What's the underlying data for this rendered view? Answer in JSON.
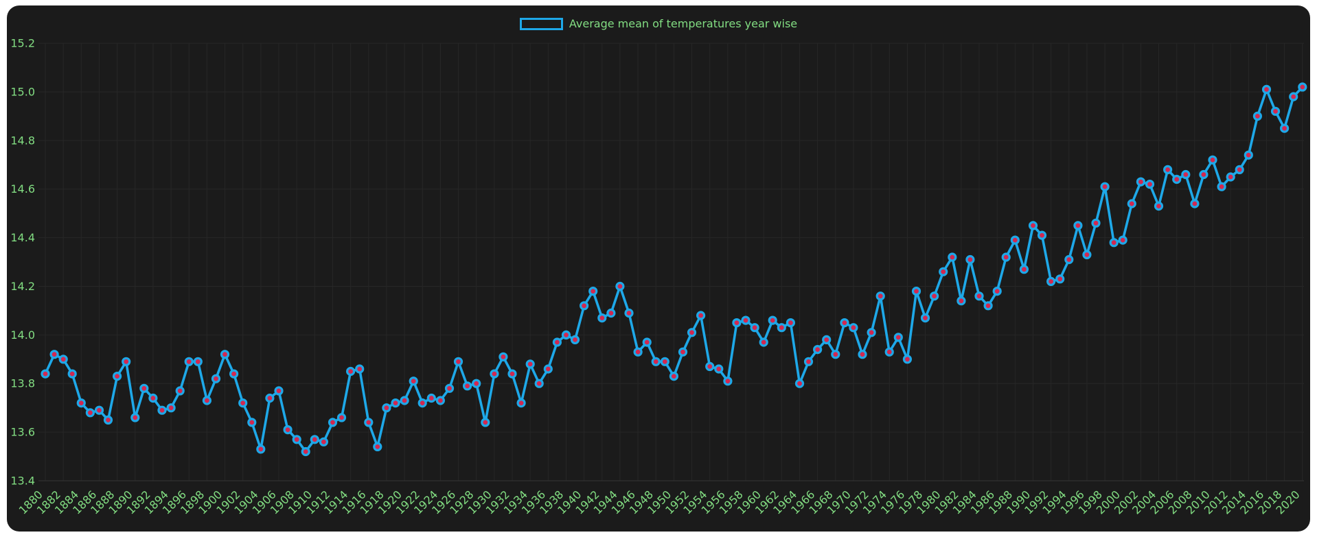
{
  "chart_data": {
    "type": "line",
    "title": "",
    "legend": "Average mean of temperatures year wise",
    "legend_position": "top-center",
    "xlabel": "",
    "ylabel": "",
    "grid": true,
    "ylim": [
      13.4,
      15.2
    ],
    "y_ticks": [
      "13.4",
      "13.6",
      "13.8",
      "14.0",
      "14.2",
      "14.4",
      "14.6",
      "14.8",
      "15.0",
      "15.2"
    ],
    "x_ticks": [
      1880,
      1882,
      1884,
      1886,
      1888,
      1890,
      1892,
      1894,
      1896,
      1898,
      1900,
      1902,
      1904,
      1906,
      1908,
      1910,
      1912,
      1914,
      1916,
      1918,
      1920,
      1922,
      1924,
      1926,
      1928,
      1930,
      1932,
      1934,
      1936,
      1938,
      1940,
      1942,
      1944,
      1946,
      1948,
      1950,
      1952,
      1954,
      1956,
      1958,
      1960,
      1962,
      1964,
      1966,
      1968,
      1970,
      1972,
      1974,
      1976,
      1978,
      1980,
      1982,
      1984,
      1986,
      1988,
      1990,
      1992,
      1994,
      1996,
      1998,
      2000,
      2002,
      2004,
      2006,
      2008,
      2010,
      2012,
      2014,
      2016,
      2018,
      2020
    ],
    "x": [
      1880,
      1881,
      1882,
      1883,
      1884,
      1885,
      1886,
      1887,
      1888,
      1889,
      1890,
      1891,
      1892,
      1893,
      1894,
      1895,
      1896,
      1897,
      1898,
      1899,
      1900,
      1901,
      1902,
      1903,
      1904,
      1905,
      1906,
      1907,
      1908,
      1909,
      1910,
      1911,
      1912,
      1913,
      1914,
      1915,
      1916,
      1917,
      1918,
      1919,
      1920,
      1921,
      1922,
      1923,
      1924,
      1925,
      1926,
      1927,
      1928,
      1929,
      1930,
      1931,
      1932,
      1933,
      1934,
      1935,
      1936,
      1937,
      1938,
      1939,
      1940,
      1941,
      1942,
      1943,
      1944,
      1945,
      1946,
      1947,
      1948,
      1949,
      1950,
      1951,
      1952,
      1953,
      1954,
      1955,
      1956,
      1957,
      1958,
      1959,
      1960,
      1961,
      1962,
      1963,
      1964,
      1965,
      1966,
      1967,
      1968,
      1969,
      1970,
      1971,
      1972,
      1973,
      1974,
      1975,
      1976,
      1977,
      1978,
      1979,
      1980,
      1981,
      1982,
      1983,
      1984,
      1985,
      1986,
      1987,
      1988,
      1989,
      1990,
      1991,
      1992,
      1993,
      1994,
      1995,
      1996,
      1997,
      1998,
      1999,
      2000,
      2001,
      2002,
      2003,
      2004,
      2005,
      2006,
      2007,
      2008,
      2009,
      2010,
      2011,
      2012,
      2013,
      2014,
      2015,
      2016,
      2017,
      2018,
      2019,
      2020
    ],
    "series": [
      {
        "name": "Average mean of temperatures year wise",
        "values": [
          13.84,
          13.92,
          13.9,
          13.84,
          13.72,
          13.68,
          13.69,
          13.65,
          13.83,
          13.89,
          13.66,
          13.78,
          13.74,
          13.69,
          13.7,
          13.77,
          13.89,
          13.89,
          13.73,
          13.82,
          13.92,
          13.84,
          13.72,
          13.64,
          13.53,
          13.74,
          13.77,
          13.61,
          13.57,
          13.52,
          13.57,
          13.56,
          13.64,
          13.66,
          13.85,
          13.86,
          13.64,
          13.54,
          13.7,
          13.72,
          13.73,
          13.81,
          13.72,
          13.74,
          13.73,
          13.78,
          13.89,
          13.79,
          13.8,
          13.64,
          13.84,
          13.91,
          13.84,
          13.72,
          13.88,
          13.8,
          13.86,
          13.97,
          14.0,
          13.98,
          14.12,
          14.18,
          14.07,
          14.09,
          14.2,
          14.09,
          13.93,
          13.97,
          13.89,
          13.89,
          13.83,
          13.93,
          14.01,
          14.08,
          13.87,
          13.86,
          13.81,
          14.05,
          14.06,
          14.03,
          13.97,
          14.06,
          14.03,
          14.05,
          13.8,
          13.89,
          13.94,
          13.98,
          13.92,
          14.05,
          14.03,
          13.92,
          14.01,
          14.16,
          13.93,
          13.99,
          13.9,
          14.18,
          14.07,
          14.16,
          14.26,
          14.32,
          14.14,
          14.31,
          14.16,
          14.12,
          14.18,
          14.32,
          14.39,
          14.27,
          14.45,
          14.41,
          14.22,
          14.23,
          14.31,
          14.45,
          14.33,
          14.46,
          14.61,
          14.38,
          14.39,
          14.54,
          14.63,
          14.62,
          14.53,
          14.68,
          14.64,
          14.66,
          14.54,
          14.66,
          14.72,
          14.61,
          14.65,
          14.68,
          14.74,
          14.9,
          15.01,
          14.92,
          14.85,
          14.98,
          15.02
        ]
      }
    ],
    "colors": {
      "page_bg": "#ffffff",
      "panel_bg": "#1b1b1b",
      "grid": "#272727",
      "axis": "#323232",
      "tick_label": "#82dd82",
      "legend_text": "#82dd82",
      "line": "#1ea8e8",
      "marker_fill": "#d22850",
      "marker_edge": "#1ea8e8"
    }
  }
}
